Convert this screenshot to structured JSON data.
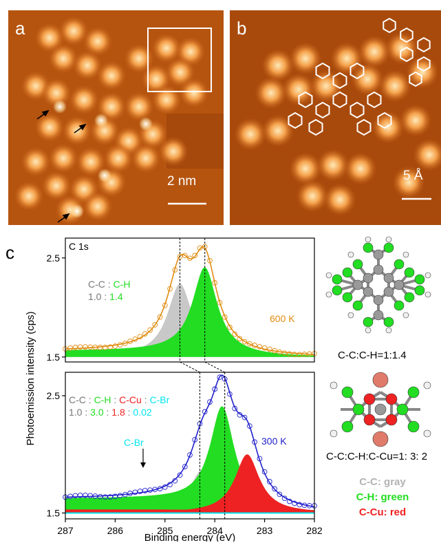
{
  "figure": {
    "panel_a": {
      "label": "a",
      "scale": "2 nm"
    },
    "panel_b": {
      "label": "b",
      "scale": "5 Å"
    },
    "panel_c": {
      "label": "c"
    }
  },
  "chart_data": {
    "type": "line",
    "spectrum_label": "C 1s",
    "xlabel": "Binding energy (eV)",
    "ylabel": "Photoemission intensity (cps)",
    "xlim": [
      287,
      282
    ],
    "x_reversed": true,
    "x_ticks": [
      "287",
      "286",
      "285",
      "284",
      "283",
      "282"
    ],
    "y_ticks_top": [
      "2.5",
      "1.5"
    ],
    "y_ticks_bottom": [
      "2.5",
      "1.5"
    ],
    "panels": [
      {
        "temperature": "600 K",
        "ratio_header": [
          "C-C",
          ":",
          "C-H"
        ],
        "ratio_values": [
          "1.0",
          ":",
          "1.4"
        ],
        "ylim": [
          1.45,
          2.7
        ],
        "baseline": 1.5,
        "envelope_color": "#e08c10",
        "peaks": [
          {
            "name": "C-C",
            "center": 284.7,
            "height": 0.74,
            "width": 0.3,
            "color": "#c8c8c8"
          },
          {
            "name": "C-H",
            "center": 284.2,
            "height": 0.87,
            "width": 0.3,
            "color": "#22dd22"
          }
        ],
        "tail": 0.06
      },
      {
        "temperature": "300 K",
        "ratio_header": [
          "C-C",
          ":",
          "C-H",
          ":",
          "C-Cu",
          ":",
          "C-Br"
        ],
        "ratio_values": [
          "1.0",
          ":",
          "3.0",
          ":",
          "1.8",
          ":",
          "0.02"
        ],
        "annotation": "C-Br",
        "ylim": [
          1.45,
          2.7
        ],
        "baseline": 1.5,
        "envelope_color": "#2020cc",
        "peaks": [
          {
            "name": "C-C",
            "center": 284.25,
            "height": 0.37,
            "width": 0.3,
            "color": "#c8c8c8"
          },
          {
            "name": "C-H",
            "center": 283.85,
            "height": 0.86,
            "width": 0.3,
            "color": "#22dd22"
          },
          {
            "name": "C-Cu",
            "center": 283.35,
            "height": 0.5,
            "width": 0.3,
            "color": "#ee2222"
          },
          {
            "name": "C-Br",
            "center": 285.5,
            "height": 0.02,
            "width": 0.3,
            "color": "#00e5ee"
          }
        ],
        "tail": 0.12
      }
    ],
    "dashed_lines": [
      284.7,
      284.2,
      284.3,
      283.8
    ],
    "colors": {
      "C-C": "#c8c8c8",
      "C-H": "#22dd22",
      "C-Cu": "#ee2222",
      "C-Br": "#00e5ee"
    }
  },
  "models": {
    "top_caption": "C-C:C-H=1:1.4",
    "bottom_caption": "C-C:C-H:C-Cu=1: 3: 2",
    "legend": [
      {
        "text": "C-C: gray",
        "color": "#b3b3b3"
      },
      {
        "text": "C-H: green",
        "color": "#22dd22"
      },
      {
        "text": "C-Cu: red",
        "color": "#ee2222"
      }
    ]
  }
}
